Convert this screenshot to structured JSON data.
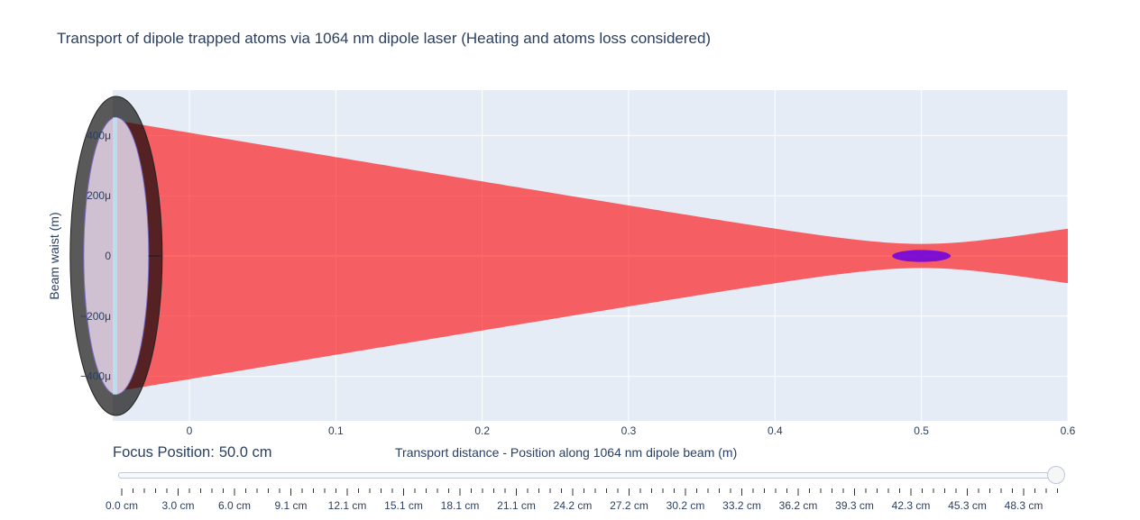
{
  "title": "Transport of dipole trapped atoms via 1064 nm dipole laser (Heating and atoms loss considered)",
  "chart_data": {
    "type": "area",
    "title": "Transport of dipole trapped atoms via 1064 nm dipole laser (Heating and atoms loss considered)",
    "xlabel": "Transport distance - Position along 1064 nm dipole beam (m)",
    "ylabel": "Beam waist (m)",
    "xlim": [
      -0.05,
      0.6
    ],
    "ylim": [
      -0.00055,
      0.00055
    ],
    "x_ticks": [
      0,
      0.1,
      0.2,
      0.3,
      0.4,
      0.5,
      0.6
    ],
    "x_tick_labels": [
      "0",
      "0.1",
      "0.2",
      "0.3",
      "0.4",
      "0.5",
      "0.6"
    ],
    "y_ticks": [
      0.0004,
      0.0002,
      0,
      -0.0002,
      -0.0004
    ],
    "y_tick_labels": [
      "400μ",
      "200μ",
      "0",
      "−200μ",
      "−400μ"
    ],
    "grid": true,
    "beam": {
      "name": "1064 nm dipole beam",
      "color": "#ff0000",
      "focus_x": 0.5,
      "waist_at_focus": 4e-05,
      "x": [
        -0.05,
        0.0,
        0.1,
        0.2,
        0.3,
        0.4,
        0.45,
        0.5,
        0.55,
        0.6
      ],
      "upper": [
        0.00045,
        0.000415,
        0.000333,
        0.000248,
        0.00017,
        9e-05,
        6e-05,
        4e-05,
        6e-05,
        9e-05
      ],
      "lower": [
        -0.00045,
        -0.000415,
        -0.000333,
        -0.000248,
        -0.00017,
        -9e-05,
        -6e-05,
        -4e-05,
        -6e-05,
        -9e-05
      ]
    },
    "lens": {
      "center_x": -0.05,
      "outer_half_height": 0.00053,
      "inner_half_height": 0.00046
    },
    "atom_cloud": {
      "center_x": 0.5,
      "half_width": 0.02,
      "half_height": 2e-05,
      "color": "#6a00e8"
    }
  },
  "slider": {
    "label_prefix": "Focus Position:",
    "current_value": "50.0 cm",
    "position_fraction": 1.0,
    "tick_labels": [
      "0.0 cm",
      "3.0 cm",
      "6.0 cm",
      "9.1 cm",
      "12.1 cm",
      "15.1 cm",
      "18.1 cm",
      "21.1 cm",
      "24.2 cm",
      "27.2 cm",
      "30.2 cm",
      "33.2 cm",
      "36.2 cm",
      "39.3 cm",
      "42.3 cm",
      "45.3 cm",
      "48.3 cm"
    ]
  }
}
